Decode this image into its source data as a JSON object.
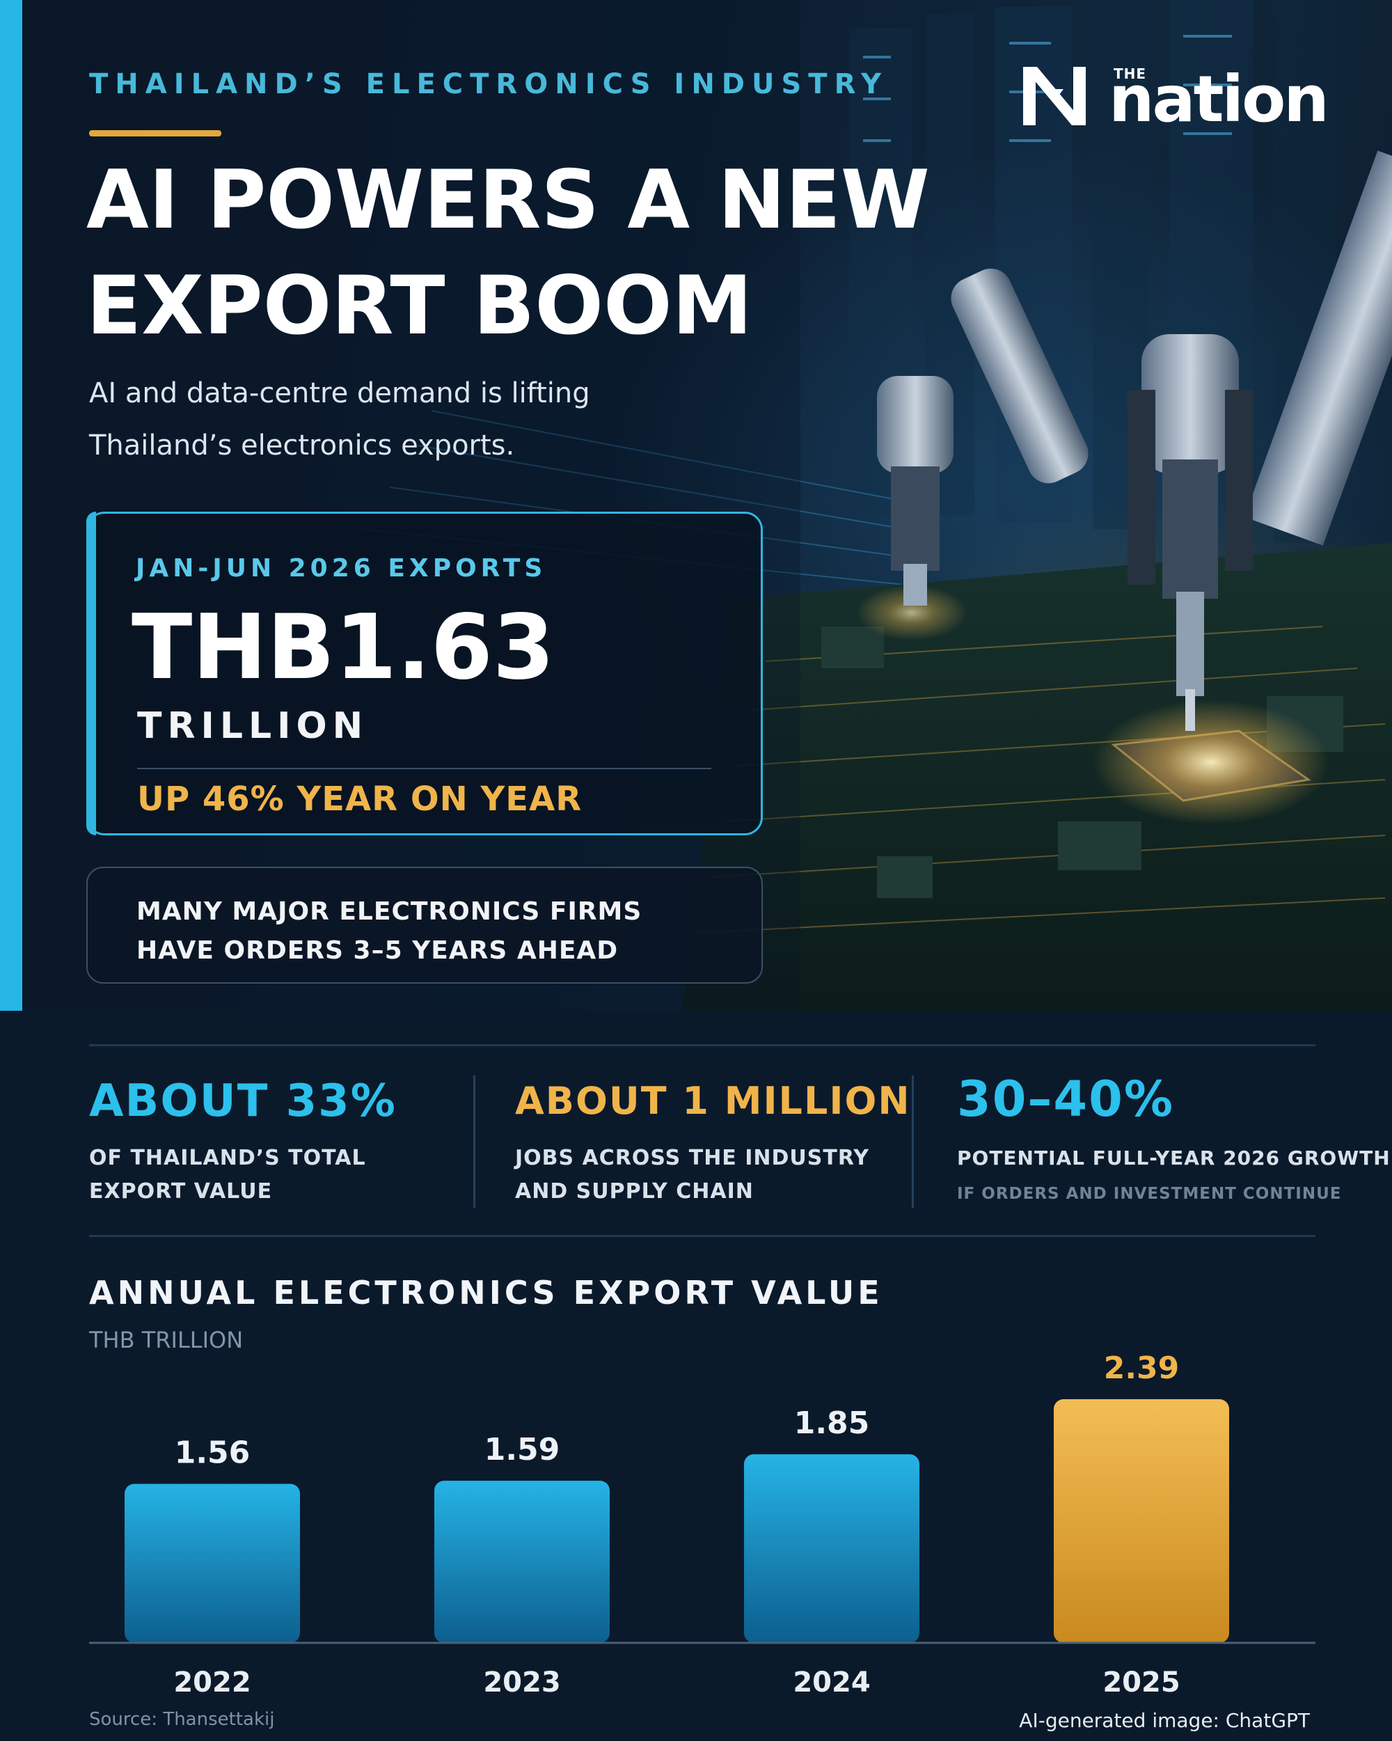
{
  "header": {
    "eyebrow": "THAILAND’S ELECTRONICS INDUSTRY",
    "headline_line1": "AI POWERS A NEW",
    "headline_line2": "EXPORT BOOM",
    "subtitle_line1": "AI and data-centre demand is lifting",
    "subtitle_line2": "Thailand’s electronics exports.",
    "logo_the": "THE",
    "logo_word": "nation"
  },
  "stat_card": {
    "label": "JAN-JUN 2026 EXPORTS",
    "value": "THB1.63",
    "unit": "TRILLION",
    "growth": "UP 46% YEAR ON YEAR"
  },
  "orders": {
    "line1": "MANY MAJOR ELECTRONICS FIRMS",
    "line2": "HAVE ORDERS 3–5 YEARS AHEAD"
  },
  "kpis": [
    {
      "value": "ABOUT 33%",
      "desc1": "OF THAILAND’S TOTAL",
      "desc2": "EXPORT VALUE"
    },
    {
      "value": "ABOUT 1 MILLION",
      "desc1": "JOBS ACROSS THE INDUSTRY",
      "desc2": "AND SUPPLY CHAIN"
    },
    {
      "value": "30–40%",
      "desc1": "POTENTIAL FULL-YEAR 2026 GROWTH",
      "note": "IF ORDERS AND INVESTMENT CONTINUE"
    }
  ],
  "colors": {
    "accent_blue": "#27b6e6",
    "accent_gold": "#f0b44a",
    "bar_blue": "#1e9fd6",
    "bar_gold": "#f0b44a"
  },
  "chart_data": {
    "type": "bar",
    "title": "ANNUAL ELECTRONICS EXPORT VALUE",
    "ylabel": "THB TRILLION",
    "categories": [
      "2022",
      "2023",
      "2024",
      "2025"
    ],
    "values": [
      1.56,
      1.59,
      1.85,
      2.39
    ],
    "value_labels": [
      "1.56",
      "1.59",
      "1.85",
      "2.39"
    ],
    "highlight_index": 3,
    "ylim": [
      0,
      2.8
    ],
    "grid": false,
    "legend": "none"
  },
  "footer": {
    "source": "Source: Thansettakij",
    "image_credit": "AI-generated image: ChatGPT"
  }
}
